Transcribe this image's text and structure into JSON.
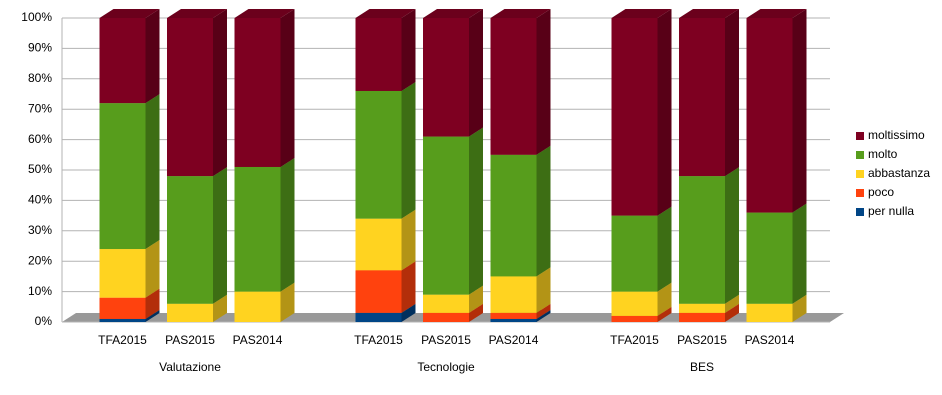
{
  "chart_data": {
    "type": "bar3d-stacked",
    "categories": [
      "TFA2015",
      "PAS2015",
      "PAS2014",
      "TFA2015",
      "PAS2015",
      "PAS2014",
      "TFA2015",
      "PAS2015",
      "PAS2014"
    ],
    "groups": [
      "Valutazione",
      "Tecnologie",
      "BES"
    ],
    "series": [
      {
        "name": "per nulla",
        "color": "#004586",
        "values": [
          1,
          0,
          0,
          3,
          0,
          1,
          0,
          0,
          0
        ]
      },
      {
        "name": "poco",
        "color": "#ff420e",
        "values": [
          7,
          0,
          0,
          14,
          3,
          2,
          2,
          3,
          0
        ]
      },
      {
        "name": "abbastanza",
        "color": "#ffd320",
        "values": [
          16,
          6,
          10,
          17,
          6,
          12,
          8,
          3,
          6
        ]
      },
      {
        "name": "molto",
        "color": "#579d1c",
        "values": [
          48,
          42,
          41,
          42,
          52,
          40,
          25,
          42,
          30
        ]
      },
      {
        "name": "moltissimo",
        "color": "#7e0021",
        "values": [
          28,
          52,
          49,
          24,
          39,
          45,
          65,
          52,
          64
        ]
      }
    ],
    "ylim": [
      0,
      100
    ],
    "yticks": [
      {
        "value": 0,
        "label": "0%"
      },
      {
        "value": 10,
        "label": "10%"
      },
      {
        "value": 20,
        "label": "20%"
      },
      {
        "value": 30,
        "label": "30%"
      },
      {
        "value": 40,
        "label": "40%"
      },
      {
        "value": 50,
        "label": "50%"
      },
      {
        "value": 60,
        "label": "60%"
      },
      {
        "value": 70,
        "label": "70%"
      },
      {
        "value": 80,
        "label": "80%"
      },
      {
        "value": 90,
        "label": "90%"
      },
      {
        "value": 100,
        "label": "100%"
      }
    ],
    "grid": true,
    "legend": "right"
  }
}
